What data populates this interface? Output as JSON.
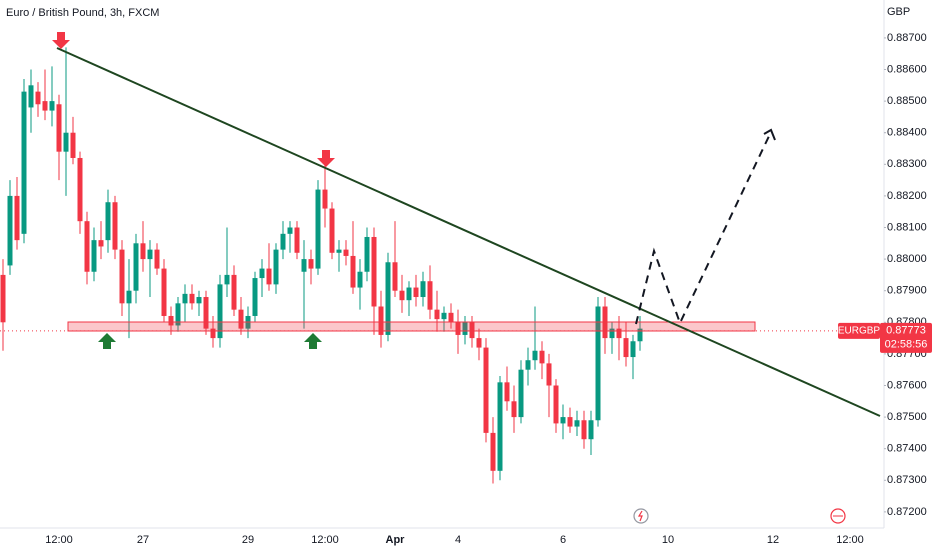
{
  "chart_data": {
    "type": "candlestick",
    "title": "Euro / British Pound, 3h, FXCM",
    "y_label": "GBP",
    "up_color": "#089981",
    "down_color": "#f23645",
    "grid": false,
    "ylim": [
      0.87149,
      0.8882
    ],
    "yticks": [
      {
        "value": 0.872,
        "label": "0.87200"
      },
      {
        "value": 0.873,
        "label": "0.87300"
      },
      {
        "value": 0.874,
        "label": "0.87400"
      },
      {
        "value": 0.875,
        "label": "0.87500"
      },
      {
        "value": 0.876,
        "label": "0.87600"
      },
      {
        "value": 0.877,
        "label": "0.87700"
      },
      {
        "value": 0.878,
        "label": "0.87800"
      },
      {
        "value": 0.879,
        "label": "0.87900"
      },
      {
        "value": 0.88,
        "label": "0.88000"
      },
      {
        "value": 0.881,
        "label": "0.88100"
      },
      {
        "value": 0.882,
        "label": "0.88200"
      },
      {
        "value": 0.883,
        "label": "0.88300"
      },
      {
        "value": 0.884,
        "label": "0.88400"
      },
      {
        "value": 0.885,
        "label": "0.88500"
      },
      {
        "value": 0.886,
        "label": "0.88600"
      },
      {
        "value": 0.887,
        "label": "0.88700"
      }
    ],
    "categories": [
      null,
      null,
      null,
      null,
      null,
      null,
      null,
      null,
      "12:00",
      null,
      null,
      null,
      null,
      null,
      null,
      null,
      null,
      null,
      null,
      null,
      "27",
      null,
      null,
      null,
      null,
      null,
      null,
      null,
      null,
      null,
      null,
      null,
      null,
      null,
      null,
      "29",
      null,
      null,
      null,
      null,
      null,
      null,
      null,
      null,
      null,
      null,
      "12:00",
      null,
      null,
      null,
      null,
      null,
      null,
      null,
      null,
      null,
      "Apr",
      null,
      null,
      null,
      null,
      null,
      null,
      null,
      null,
      "4",
      null,
      null,
      null,
      null,
      null,
      null,
      null,
      null,
      null,
      null,
      null,
      null,
      null,
      null,
      "6",
      null,
      null,
      null,
      null,
      null,
      null,
      null,
      null,
      null,
      null,
      null,
      null,
      null,
      null,
      "10",
      null,
      null,
      null,
      null,
      null,
      null,
      null,
      null,
      null,
      null,
      null,
      null,
      null,
      null,
      "12",
      null,
      null,
      null,
      null,
      null,
      null,
      null,
      null,
      null,
      null,
      "12:00",
      null,
      null,
      null,
      null
    ],
    "open": [
      0.8795,
      0.8798,
      0.882,
      0.8808,
      0.8848,
      0.8853,
      0.885,
      0.8847,
      0.8849,
      0.8834,
      0.884,
      0.8832,
      0.8812,
      0.8796,
      0.8806,
      0.8806,
      0.8818,
      0.8803,
      0.8786,
      0.879,
      0.8805,
      0.88,
      0.8803,
      0.8797,
      0.8782,
      0.8779,
      0.8786,
      0.8789,
      0.8786,
      0.8788,
      0.8778,
      0.8775,
      0.8792,
      0.8795,
      0.8784,
      0.8778,
      0.8782,
      0.8794,
      0.8797,
      0.8792,
      0.8803,
      0.8808,
      0.881,
      0.8796,
      0.88,
      0.8797,
      0.8822,
      0.8816,
      0.8802,
      0.8803,
      0.8801,
      0.8791,
      0.8796,
      0.8807,
      0.8785,
      0.8776,
      0.8799,
      0.879,
      0.8787,
      0.8791,
      0.8788,
      0.8793,
      0.8784,
      0.8781,
      0.8783,
      0.878,
      0.8776,
      0.878,
      0.8775,
      0.8772,
      0.8745,
      0.8733,
      0.8761,
      0.8755,
      0.875,
      0.8765,
      0.8768,
      0.8771,
      0.8767,
      0.876,
      0.8748,
      0.875,
      0.8747,
      0.8749,
      0.8743,
      0.8749,
      0.8785,
      0.8775,
      0.8778,
      0.8775,
      0.8769,
      0.8774,
      null,
      null,
      null,
      null,
      null,
      null,
      null,
      null,
      null,
      null,
      null,
      null,
      null,
      null,
      null,
      null,
      null,
      null,
      null,
      null,
      null,
      null,
      null,
      null,
      null,
      null,
      null,
      null,
      null,
      null,
      null,
      null,
      null,
      null
    ],
    "high": [
      0.88,
      0.8825,
      0.8826,
      0.8857,
      0.886,
      0.8856,
      0.886,
      0.8861,
      0.8852,
      0.8867,
      0.8845,
      0.8834,
      0.8815,
      0.881,
      0.8812,
      0.8822,
      0.882,
      0.8806,
      0.88,
      0.8808,
      0.8812,
      0.8806,
      0.8805,
      0.88,
      0.8785,
      0.8788,
      0.8792,
      0.8792,
      0.879,
      0.879,
      0.8782,
      0.8795,
      0.881,
      0.8798,
      0.8788,
      0.8785,
      0.8796,
      0.88,
      0.8805,
      0.8805,
      0.8812,
      0.8812,
      0.8812,
      0.8806,
      0.8803,
      0.8825,
      0.883,
      0.8818,
      0.8806,
      0.8806,
      0.8812,
      0.88,
      0.881,
      0.881,
      0.879,
      0.8802,
      0.8812,
      0.8795,
      0.8793,
      0.8795,
      0.8796,
      0.8798,
      0.879,
      0.8785,
      0.8786,
      0.8784,
      0.8782,
      0.8782,
      0.8778,
      0.8775,
      0.875,
      0.8763,
      0.8766,
      0.876,
      0.8768,
      0.8772,
      0.8785,
      0.8774,
      0.877,
      0.8762,
      0.8754,
      0.8753,
      0.8752,
      0.8752,
      0.8752,
      0.8788,
      0.8788,
      0.878,
      0.8782,
      0.878,
      0.8776,
      0.8782,
      null,
      null,
      null,
      null,
      null,
      null,
      null,
      null,
      null,
      null,
      null,
      null,
      null,
      null,
      null,
      null,
      null,
      null,
      null,
      null,
      null,
      null,
      null,
      null,
      null,
      null,
      null,
      null,
      null,
      null,
      null,
      null,
      null,
      null
    ],
    "low": [
      0.8771,
      0.8795,
      0.8803,
      0.8805,
      0.884,
      0.8845,
      0.8844,
      0.8842,
      0.8825,
      0.882,
      0.883,
      0.8808,
      0.8792,
      0.8793,
      0.88,
      0.8802,
      0.88,
      0.8782,
      0.8775,
      0.8786,
      0.8796,
      0.8788,
      0.8795,
      0.878,
      0.8776,
      0.8777,
      0.878,
      0.8784,
      0.8782,
      0.8776,
      0.8772,
      0.8772,
      0.8788,
      0.8782,
      0.8776,
      0.8775,
      0.878,
      0.8788,
      0.879,
      0.8789,
      0.88,
      0.8802,
      0.88,
      0.8778,
      0.8792,
      0.8795,
      0.881,
      0.88,
      0.8796,
      0.8798,
      0.8789,
      0.8784,
      0.8793,
      0.8776,
      0.8772,
      0.8774,
      0.8788,
      0.8783,
      0.8782,
      0.8785,
      0.8785,
      0.8781,
      0.8777,
      0.8777,
      0.8778,
      0.877,
      0.8773,
      0.8772,
      0.8768,
      0.8742,
      0.8729,
      0.873,
      0.8752,
      0.8745,
      0.8748,
      0.876,
      0.8765,
      0.8762,
      0.875,
      0.8745,
      0.8743,
      0.8745,
      0.8744,
      0.874,
      0.8738,
      0.8747,
      0.877,
      0.877,
      0.8768,
      0.8766,
      0.8762,
      0.8771,
      null,
      null,
      null,
      null,
      null,
      null,
      null,
      null,
      null,
      null,
      null,
      null,
      null,
      null,
      null,
      null,
      null,
      null,
      null,
      null,
      null,
      null,
      null,
      null,
      null,
      null,
      null,
      null,
      null,
      null,
      null,
      null,
      null,
      null
    ],
    "close": [
      0.878,
      0.882,
      0.8806,
      0.8853,
      0.8855,
      0.8849,
      0.8847,
      0.885,
      0.8834,
      0.884,
      0.8832,
      0.8812,
      0.8796,
      0.8806,
      0.8804,
      0.8818,
      0.8803,
      0.8786,
      0.879,
      0.8805,
      0.88,
      0.8803,
      0.8797,
      0.8782,
      0.8779,
      0.8786,
      0.8789,
      0.8786,
      0.8788,
      0.8778,
      0.8775,
      0.8792,
      0.8795,
      0.8784,
      0.8778,
      0.8782,
      0.8794,
      0.8797,
      0.8792,
      0.8803,
      0.8808,
      0.881,
      0.8802,
      0.88,
      0.8797,
      0.8822,
      0.8816,
      0.8802,
      0.8803,
      0.8801,
      0.8791,
      0.8796,
      0.8807,
      0.8785,
      0.8776,
      0.8799,
      0.879,
      0.8787,
      0.8791,
      0.8788,
      0.8793,
      0.8784,
      0.8781,
      0.8783,
      0.878,
      0.8776,
      0.878,
      0.8775,
      0.8772,
      0.8745,
      0.8733,
      0.8761,
      0.8755,
      0.875,
      0.8765,
      0.8768,
      0.8771,
      0.8767,
      0.876,
      0.8748,
      0.875,
      0.8747,
      0.8749,
      0.8743,
      0.8749,
      0.8785,
      0.8775,
      0.8778,
      0.8775,
      0.8769,
      0.8774,
      0.8778,
      null,
      null,
      null,
      null,
      null,
      null,
      null,
      null,
      null,
      null,
      null,
      null,
      null,
      null,
      null,
      null,
      null,
      null,
      null,
      null,
      null,
      null,
      null,
      null,
      null,
      null,
      null,
      null,
      null,
      null,
      null,
      null,
      null,
      null
    ],
    "last_price": {
      "symbol": "EURGBP",
      "value": 0.87773,
      "label": "0.87773",
      "countdown": "02:58:56"
    }
  }
}
